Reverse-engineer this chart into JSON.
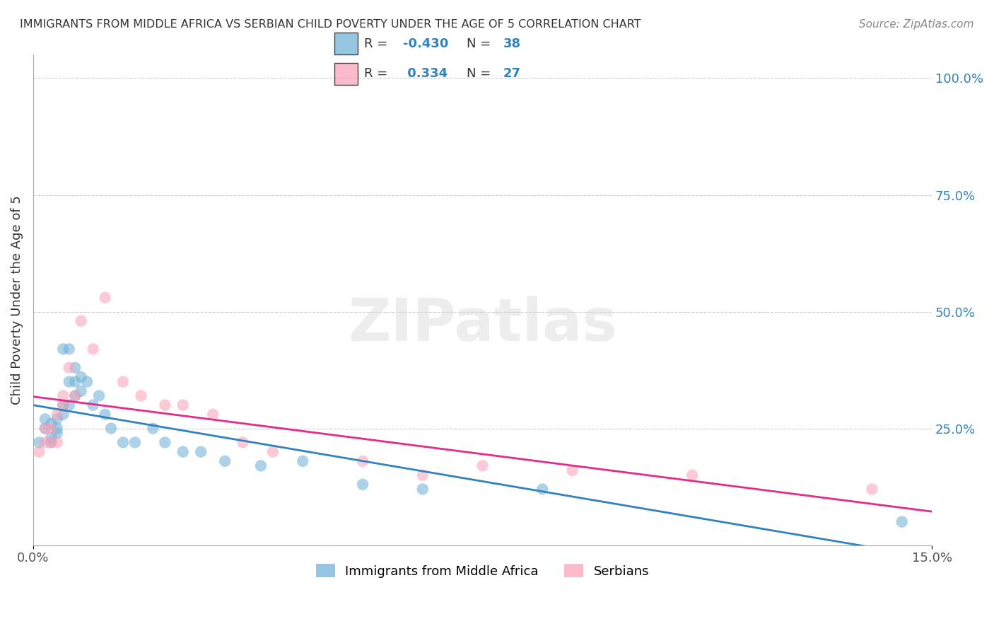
{
  "title": "IMMIGRANTS FROM MIDDLE AFRICA VS SERBIAN CHILD POVERTY UNDER THE AGE OF 5 CORRELATION CHART",
  "source": "Source: ZipAtlas.com",
  "ylabel": "Child Poverty Under the Age of 5",
  "xlim": [
    0.0,
    0.15
  ],
  "ylim": [
    0.0,
    1.05
  ],
  "y_ticks_right": [
    0.0,
    0.25,
    0.5,
    0.75,
    1.0
  ],
  "y_tick_labels_right": [
    "",
    "25.0%",
    "50.0%",
    "75.0%",
    "100.0%"
  ],
  "blue_color": "#6baed6",
  "pink_color": "#fa9fb5",
  "blue_line_color": "#3182bd",
  "pink_line_color": "#e7298a",
  "r1": "-0.430",
  "n1": "38",
  "r2": " 0.334",
  "n2": "27",
  "blue_x": [
    0.001,
    0.002,
    0.002,
    0.003,
    0.003,
    0.003,
    0.004,
    0.004,
    0.004,
    0.005,
    0.005,
    0.005,
    0.006,
    0.006,
    0.006,
    0.007,
    0.007,
    0.007,
    0.008,
    0.008,
    0.009,
    0.01,
    0.011,
    0.012,
    0.013,
    0.015,
    0.017,
    0.02,
    0.022,
    0.025,
    0.028,
    0.032,
    0.038,
    0.045,
    0.055,
    0.065,
    0.085,
    0.145
  ],
  "blue_y": [
    0.22,
    0.25,
    0.27,
    0.22,
    0.23,
    0.26,
    0.24,
    0.25,
    0.27,
    0.28,
    0.3,
    0.42,
    0.42,
    0.3,
    0.35,
    0.32,
    0.35,
    0.38,
    0.33,
    0.36,
    0.35,
    0.3,
    0.32,
    0.28,
    0.25,
    0.22,
    0.22,
    0.25,
    0.22,
    0.2,
    0.2,
    0.18,
    0.17,
    0.18,
    0.13,
    0.12,
    0.12,
    0.05
  ],
  "pink_x": [
    0.001,
    0.002,
    0.002,
    0.003,
    0.003,
    0.004,
    0.004,
    0.005,
    0.005,
    0.006,
    0.007,
    0.008,
    0.01,
    0.012,
    0.015,
    0.018,
    0.022,
    0.025,
    0.03,
    0.035,
    0.04,
    0.055,
    0.065,
    0.075,
    0.09,
    0.11,
    0.14
  ],
  "pink_y": [
    0.2,
    0.22,
    0.25,
    0.22,
    0.25,
    0.22,
    0.28,
    0.3,
    0.32,
    0.38,
    0.32,
    0.48,
    0.42,
    0.53,
    0.35,
    0.32,
    0.3,
    0.3,
    0.28,
    0.22,
    0.2,
    0.18,
    0.15,
    0.17,
    0.16,
    0.15,
    0.12
  ],
  "watermark": "ZIPatlas",
  "legend_label1": "Immigrants from Middle Africa",
  "legend_label2": "Serbians"
}
